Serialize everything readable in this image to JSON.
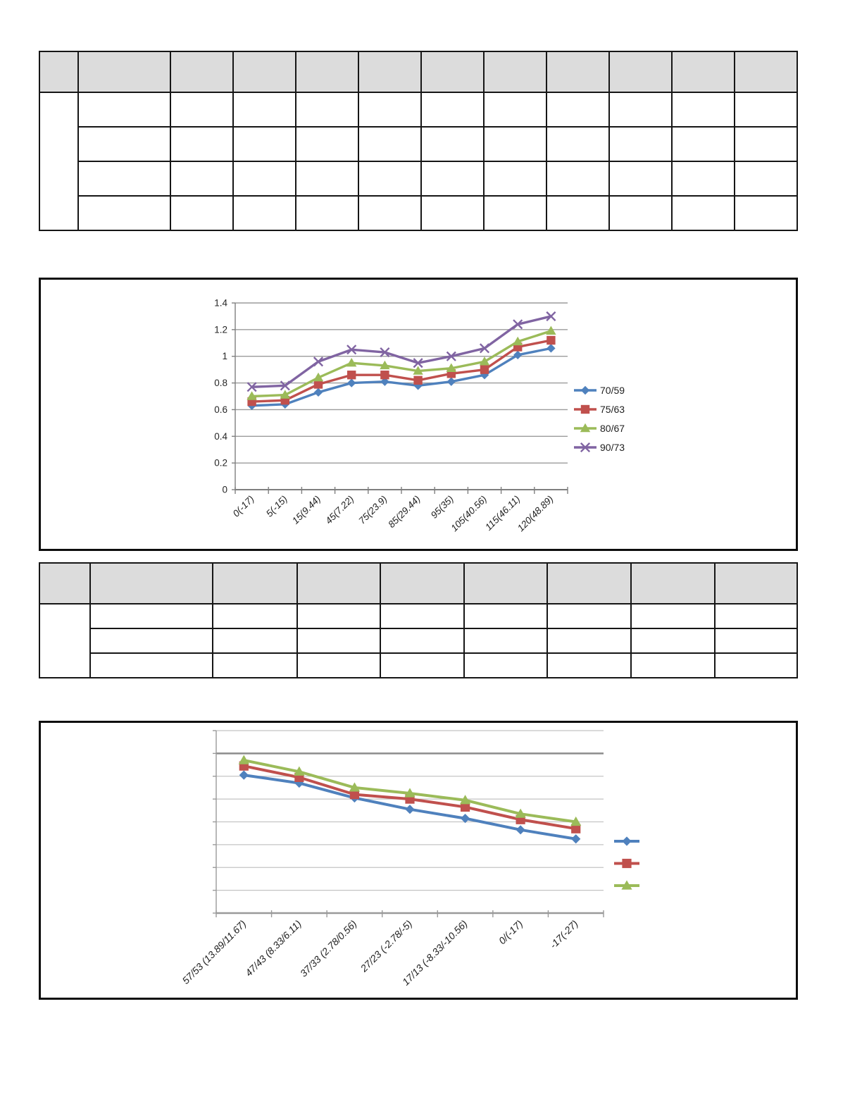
{
  "page": {
    "background": "#ffffff",
    "title": ""
  },
  "tables": [
    {
      "name": "upper-empty-table",
      "header_fill": "#dcdcdc",
      "columns": 12,
      "header_rows": 1,
      "body_rows": 4,
      "first_column_merged_in_body": true,
      "column_headers": [
        "",
        "",
        "",
        "",
        "",
        "",
        "",
        "",
        "",
        "",
        "",
        ""
      ],
      "cells": "all cells empty"
    },
    {
      "name": "lower-empty-table",
      "header_fill": "#dcdcdc",
      "columns": 9,
      "header_rows": 1,
      "body_rows": 3,
      "first_column_merged_in_body": true,
      "column_headers": [
        "",
        "",
        "",
        "",
        "",
        "",
        "",
        "",
        ""
      ],
      "cells": "all cells empty"
    }
  ],
  "chart_data": [
    {
      "type": "line",
      "title": "",
      "xlabel": "",
      "ylabel": "",
      "categories": [
        "0(-17)",
        "5(-15)",
        "15(9.44)",
        "45(7.22)",
        "75(23.9)",
        "85(29.44)",
        "95(35)",
        "105(40.56)",
        "115(46.11)",
        "120(48.89)"
      ],
      "series": [
        {
          "name": "70/59",
          "color": "#4f81bd",
          "marker": "diamond",
          "values": [
            0.63,
            0.64,
            0.73,
            0.8,
            0.81,
            0.78,
            0.81,
            0.86,
            1.01,
            1.06
          ]
        },
        {
          "name": "75/63",
          "color": "#c0504d",
          "marker": "square",
          "values": [
            0.66,
            0.67,
            0.79,
            0.86,
            0.86,
            0.82,
            0.87,
            0.9,
            1.07,
            1.12
          ]
        },
        {
          "name": "80/67",
          "color": "#9bbb59",
          "marker": "triangle",
          "values": [
            0.7,
            0.71,
            0.84,
            0.95,
            0.93,
            0.89,
            0.91,
            0.96,
            1.11,
            1.19
          ]
        },
        {
          "name": "90/73",
          "color": "#8064a2",
          "marker": "x",
          "values": [
            0.77,
            0.78,
            0.96,
            1.05,
            1.03,
            0.95,
            1.0,
            1.06,
            1.24,
            1.3
          ]
        }
      ],
      "ylim": [
        0,
        1.4
      ],
      "ytick_step": 0.2,
      "ytick_labels": [
        "0",
        "0.2",
        "0.4",
        "0.6",
        "0.8",
        "1",
        "1.2",
        "1.4"
      ],
      "grid": "horizontal",
      "legend_position": "right",
      "x_labels_rotated_degrees": 45
    },
    {
      "type": "line",
      "title": "",
      "xlabel": "",
      "ylabel": "",
      "categories": [
        "57/53 (13.89/11.67)",
        "47/43 (8.33/6.11)",
        "37/33 (2.78/0.56)",
        "27/23 (-2.78/-5)",
        "17/13 (-8.33/-10.56)",
        "0/(-17)",
        "-17(-27)"
      ],
      "series": [
        {
          "name": "",
          "color": "#4f81bd",
          "marker": "diamond",
          "values": [
            6.05,
            5.7,
            5.05,
            4.55,
            4.15,
            3.65,
            3.25
          ]
        },
        {
          "name": "",
          "color": "#c0504d",
          "marker": "square",
          "values": [
            6.45,
            5.95,
            5.2,
            5.0,
            4.65,
            4.1,
            3.7
          ]
        },
        {
          "name": "",
          "color": "#9bbb59",
          "marker": "triangle",
          "values": [
            6.7,
            6.2,
            5.5,
            5.25,
            4.95,
            4.35,
            4.0
          ]
        }
      ],
      "ylim": [
        0,
        8
      ],
      "ytick_step": 1,
      "ytick_labels": [],
      "y_axis_labels_visible": false,
      "emphasized_gridline_value": 7,
      "grid": "horizontal",
      "legend_position": "right",
      "legend_labels_empty": true,
      "x_labels_rotated_degrees": 45
    }
  ]
}
